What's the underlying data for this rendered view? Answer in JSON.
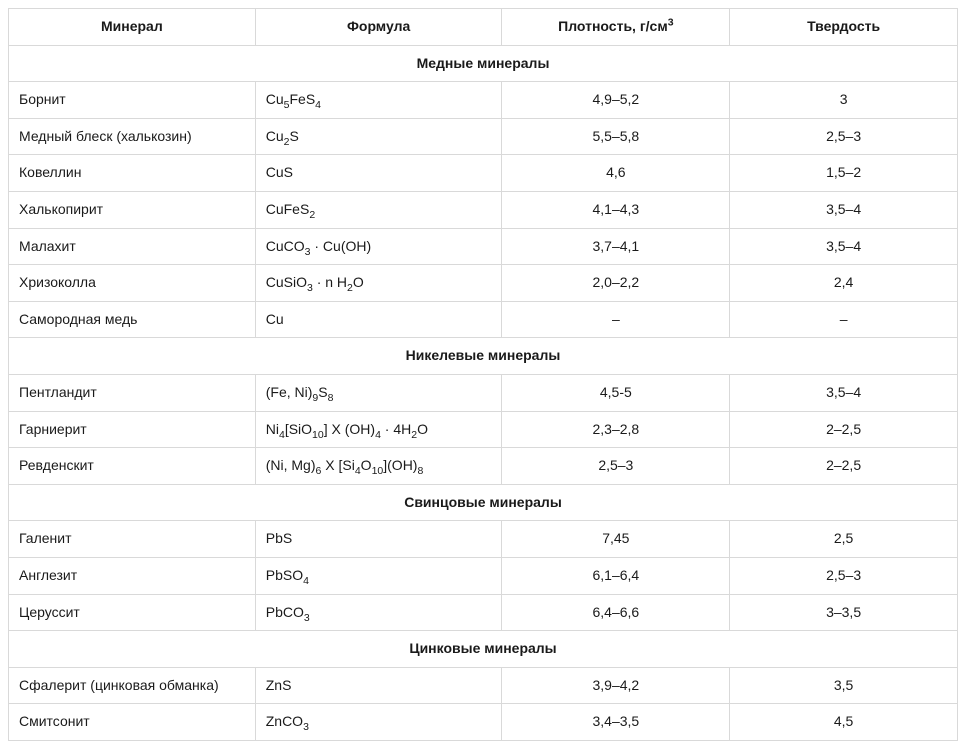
{
  "table": {
    "columns": [
      {
        "label": "Минерал",
        "align": "center"
      },
      {
        "label": "Формула",
        "align": "center"
      },
      {
        "label_html": "Плотность, г/см<sup>3</sup>",
        "align": "center"
      },
      {
        "label": "Твердость",
        "align": "center"
      }
    ],
    "column_widths_pct": [
      26,
      26,
      24,
      24
    ],
    "border_color": "#d9d9d9",
    "background_color": "#ffffff",
    "text_color": "#1a1a1a",
    "font_size_pt": 10.5,
    "sections": [
      {
        "title": "Медные минералы",
        "rows": [
          {
            "mineral": "Борнит",
            "formula_html": "Cu<sub>5</sub>FeS<sub>4</sub>",
            "density": "4,9–5,2",
            "hardness": "3"
          },
          {
            "mineral": "Медный блеск (халькозин)",
            "formula_html": "Cu<sub>2</sub>S",
            "density": "5,5–5,8",
            "hardness": "2,5–3"
          },
          {
            "mineral": "Ковеллин",
            "formula_html": "CuS",
            "density": "4,6",
            "hardness": "1,5–2"
          },
          {
            "mineral": "Халькопирит",
            "formula_html": "CuFeS<sub>2</sub>",
            "density": "4,1–4,3",
            "hardness": "3,5–4"
          },
          {
            "mineral": "Малахит",
            "formula_html": "CuCO<sub>3</sub> · Cu(OH)",
            "density": "3,7–4,1",
            "hardness": "3,5–4"
          },
          {
            "mineral": "Хризоколла",
            "formula_html": "CuSiO<sub>3</sub> · n H<sub>2</sub>O",
            "density": "2,0–2,2",
            "hardness": "2,4"
          },
          {
            "mineral": "Самородная медь",
            "formula_html": "Cu",
            "density": "–",
            "hardness": "–"
          }
        ]
      },
      {
        "title": "Никелевые минералы",
        "rows": [
          {
            "mineral": "Пентландит",
            "formula_html": "(Fe, Ni)<sub>9</sub>S<sub>8</sub>",
            "density": "4,5-5",
            "hardness": "3,5–4"
          },
          {
            "mineral": "Гарниерит",
            "formula_html": "Ni<sub>4</sub>[SiO<sub>10</sub>] X (OH)<sub>4</sub> · 4H<sub>2</sub>O",
            "density": "2,3–2,8",
            "hardness": "2–2,5"
          },
          {
            "mineral": "Ревденскит",
            "formula_html": "(Ni, Mg)<sub>6</sub> X [Si<sub>4</sub>O<sub>10</sub>](OH)<sub>8</sub>",
            "density": "2,5–3",
            "hardness": "2–2,5"
          }
        ]
      },
      {
        "title": "Свинцовые минералы",
        "rows": [
          {
            "mineral": "Галенит",
            "formula_html": "PbS",
            "density": "7,45",
            "hardness": "2,5"
          },
          {
            "mineral": "Англезит",
            "formula_html": "PbSO<sub>4</sub>",
            "density": "6,1–6,4",
            "hardness": "2,5–3"
          },
          {
            "mineral": "Церуссит",
            "formula_html": "PbCO<sub>3</sub>",
            "density": "6,4–6,6",
            "hardness": "3–3,5"
          }
        ]
      },
      {
        "title": "Цинковые минералы",
        "rows": [
          {
            "mineral": "Сфалерит (цинковая обманка)",
            "formula_html": "ZnS",
            "density": "3,9–4,2",
            "hardness": "3,5"
          },
          {
            "mineral": "Смитсонит",
            "formula_html": "ZnCO<sub>3</sub>",
            "density": "3,4–3,5",
            "hardness": "4,5"
          }
        ]
      }
    ]
  }
}
